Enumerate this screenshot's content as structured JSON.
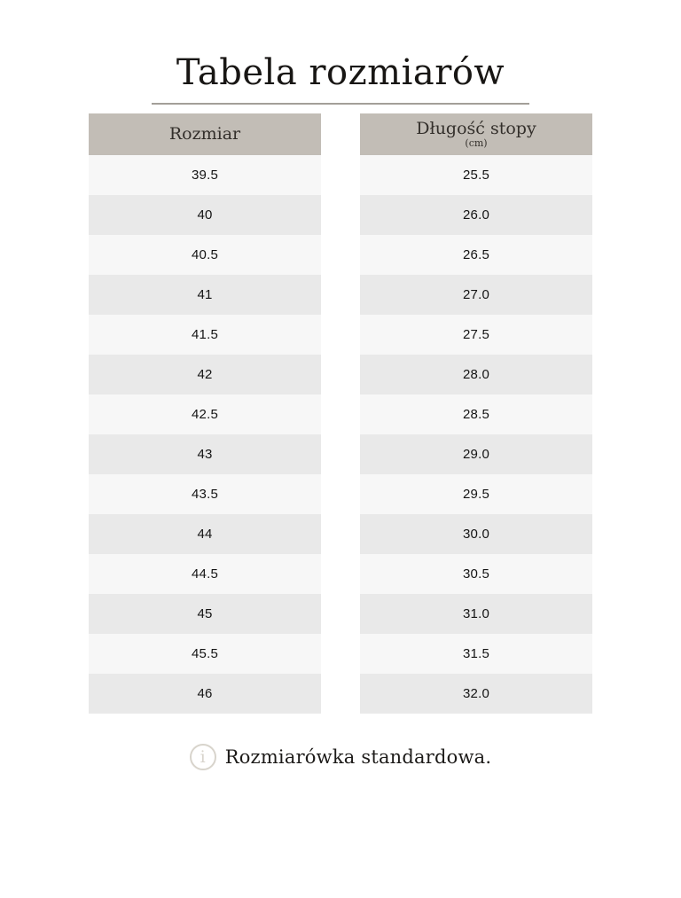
{
  "page": {
    "title": "Tabela rozmiarów",
    "footer_note": "Rozmiarówka standardowa.",
    "info_icon_glyph": "i"
  },
  "colors": {
    "header_bg": "#c2bdb6",
    "row_light": "#f7f7f7",
    "row_dark": "#e9e9e9",
    "divider": "#a39f99",
    "info_icon": "#d8d4cc",
    "title_text": "#181614",
    "cell_text": "#141414"
  },
  "chart_data": {
    "type": "table",
    "title": "Tabela rozmiarów",
    "columns": [
      {
        "header": "Rozmiar"
      },
      {
        "header": "Długość stopy",
        "subheader": "(cm)"
      }
    ],
    "rows": [
      [
        "39.5",
        "25.5"
      ],
      [
        "40",
        "26.0"
      ],
      [
        "40.5",
        "26.5"
      ],
      [
        "41",
        "27.0"
      ],
      [
        "41.5",
        "27.5"
      ],
      [
        "42",
        "28.0"
      ],
      [
        "42.5",
        "28.5"
      ],
      [
        "43",
        "29.0"
      ],
      [
        "43.5",
        "29.5"
      ],
      [
        "44",
        "30.0"
      ],
      [
        "44.5",
        "30.5"
      ],
      [
        "45",
        "31.0"
      ],
      [
        "45.5",
        "31.5"
      ],
      [
        "46",
        "32.0"
      ]
    ],
    "note": "Rozmiarówka standardowa.",
    "layout": {
      "striped": true,
      "stripe_order": [
        "light",
        "dark"
      ]
    }
  }
}
